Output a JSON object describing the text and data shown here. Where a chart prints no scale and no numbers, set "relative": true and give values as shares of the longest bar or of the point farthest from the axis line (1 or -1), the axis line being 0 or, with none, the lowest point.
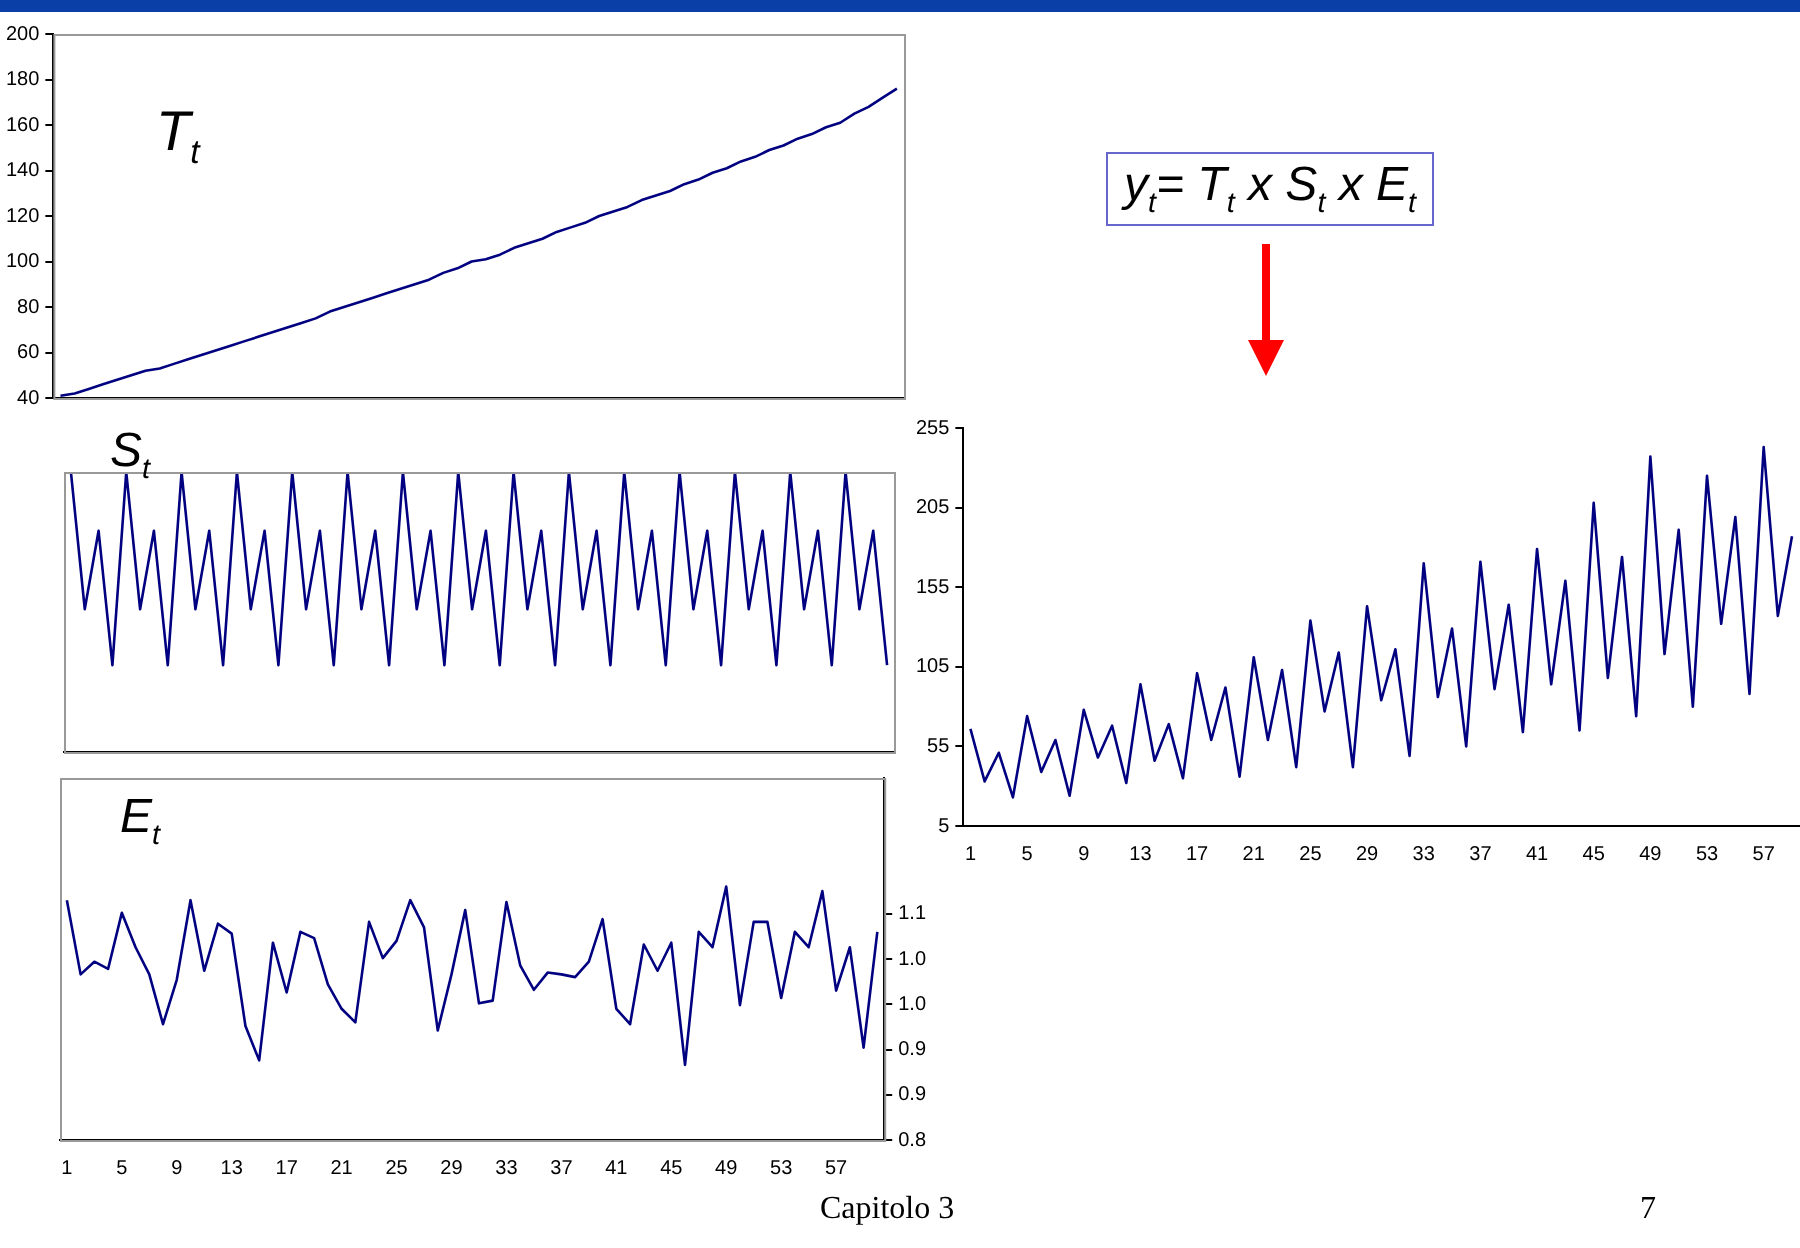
{
  "chart_data": [
    {
      "type": "line",
      "annotations": [
        "T$_{t}$"
      ],
      "tick_labels": "y",
      "grid": false,
      "marker": "none",
      "legend": false,
      "categories": [
        null,
        null,
        null,
        null,
        null,
        null,
        null,
        null,
        null,
        null,
        null,
        null,
        null,
        null,
        null,
        null,
        null,
        null,
        null,
        null,
        null,
        null,
        null,
        null,
        null,
        null,
        null,
        null,
        null,
        null,
        null,
        null,
        null,
        null,
        null,
        null,
        null,
        null,
        null,
        null,
        null,
        null,
        null,
        null,
        null,
        null,
        null,
        null,
        null,
        null,
        null,
        null,
        null,
        null,
        null,
        null,
        null,
        null,
        null,
        null
      ],
      "ylim": [
        40,
        200
      ],
      "yticks": [
        40,
        60,
        80,
        100,
        120,
        140,
        160,
        180,
        200
      ],
      "series": [
        {
          "color": "#000080",
          "values": [
            41,
            42,
            44,
            46,
            48,
            50,
            52,
            53,
            55,
            57,
            59,
            61,
            63,
            65,
            67,
            69,
            71,
            73,
            75,
            78,
            80,
            82,
            84,
            86,
            88,
            90,
            92,
            95,
            97,
            100,
            101,
            103,
            106,
            108,
            110,
            113,
            115,
            117,
            120,
            122,
            124,
            127,
            129,
            131,
            134,
            136,
            139,
            141,
            144,
            146,
            149,
            151,
            154,
            156,
            159,
            161,
            165,
            168,
            172,
            176
          ]
        }
      ]
    },
    {
      "type": "line",
      "annotations": [
        "S$_{t}$"
      ],
      "tick_labels": false,
      "grid": false,
      "marker": "none",
      "legend": false,
      "relative": true,
      "categories": [
        null,
        null,
        null,
        null,
        null,
        null,
        null,
        null,
        null,
        null,
        null,
        null,
        null,
        null,
        null,
        null,
        null,
        null,
        null,
        null,
        null,
        null,
        null,
        null,
        null,
        null,
        null,
        null,
        null,
        null,
        null,
        null,
        null,
        null,
        null,
        null,
        null,
        null,
        null,
        null,
        null,
        null,
        null,
        null,
        null,
        null,
        null,
        null,
        null,
        null,
        null,
        null,
        null,
        null,
        null,
        null,
        null,
        null,
        null,
        null
      ],
      "series": [
        {
          "color": "#000080",
          "values": [
            1,
            0.51,
            0.79,
            0.31,
            1,
            0.51,
            0.79,
            0.31,
            1,
            0.51,
            0.79,
            0.31,
            1,
            0.51,
            0.79,
            0.31,
            1,
            0.51,
            0.79,
            0.31,
            1,
            0.51,
            0.79,
            0.31,
            1,
            0.51,
            0.79,
            0.31,
            1,
            0.51,
            0.79,
            0.31,
            1,
            0.51,
            0.79,
            0.31,
            1,
            0.51,
            0.79,
            0.31,
            1,
            0.51,
            0.79,
            0.31,
            1,
            0.51,
            0.79,
            0.31,
            1,
            0.51,
            0.79,
            0.31,
            1,
            0.51,
            0.79,
            0.31,
            1,
            0.51,
            0.79,
            0.31
          ]
        }
      ]
    },
    {
      "type": "line",
      "annotations": [
        "E$_{t}$"
      ],
      "grid": false,
      "marker": "none",
      "legend": false,
      "categories": [
        "1",
        null,
        null,
        null,
        "5",
        null,
        null,
        null,
        "9",
        null,
        null,
        null,
        "13",
        null,
        null,
        null,
        "17",
        null,
        null,
        null,
        "21",
        null,
        null,
        null,
        "25",
        null,
        null,
        null,
        "29",
        null,
        null,
        null,
        "33",
        null,
        null,
        null,
        "37",
        null,
        null,
        null,
        "41",
        null,
        null,
        null,
        "45",
        null,
        null,
        null,
        "49",
        null,
        null,
        null,
        "53",
        null,
        null,
        null,
        "57",
        null,
        null,
        null
      ],
      "y2lim": [
        0.8,
        1.2
      ],
      "y2ticks": [
        0.8,
        {
          "value": 0.85,
          "label": "0.9"
        },
        0.9,
        {
          "value": 0.95,
          "label": "1.0"
        },
        {
          "value": 1,
          "label": "1.0"
        },
        {
          "value": 1.05,
          "label": "1.1"
        }
      ],
      "series": [
        {
          "color": "#000080",
          "axis": "y2",
          "values": [
            1.065,
            0.983,
            0.997,
            0.989,
            1.051,
            1.013,
            0.983,
            0.928,
            0.977,
            1.065,
            0.987,
            1.039,
            1.028,
            0.926,
            0.888,
            1.018,
            0.963,
            1.03,
            1.023,
            0.972,
            0.945,
            0.93,
            1.041,
            1.001,
            1.02,
            1.065,
            1.035,
            0.921,
            0.983,
            1.054,
            0.951,
            0.954,
            1.063,
            0.993,
            0.966,
            0.985,
            0.983,
            0.98,
            0.997,
            1.044,
            0.945,
            0.928,
            1.016,
            0.987,
            1.018,
            0.883,
            1.03,
            1.013,
            1.08,
            0.949,
            1.041,
            1.041,
            0.957,
            1.03,
            1.013,
            1.075,
            0.965,
            1.013,
            0.902,
            1.03
          ]
        }
      ]
    },
    {
      "type": "line",
      "annotations": [
        "y$_{t}$= T$_{t}$ x S$_{t}$ x E$_{t}$"
      ],
      "grid": false,
      "marker": "none",
      "legend": false,
      "categories": [
        "1",
        null,
        null,
        null,
        "5",
        null,
        null,
        null,
        "9",
        null,
        null,
        null,
        "13",
        null,
        null,
        null,
        "17",
        null,
        null,
        null,
        "21",
        null,
        null,
        null,
        "25",
        null,
        null,
        null,
        "29",
        null,
        null,
        null,
        "33",
        null,
        null,
        null,
        "37",
        null,
        null,
        null,
        "41",
        null,
        null,
        null,
        "45",
        null,
        null,
        null,
        "49",
        null,
        null,
        null,
        "53",
        null,
        null,
        null,
        "57",
        null,
        null
      ],
      "ylim": [
        5,
        255
      ],
      "yticks": [
        5,
        55,
        105,
        155,
        205,
        255
      ],
      "series": [
        {
          "color": "#000080",
          "values": [
            66,
            33,
            51,
            23,
            74,
            39,
            59,
            24,
            78,
            48,
            68,
            32,
            94,
            46,
            69,
            35,
            101,
            59,
            92,
            36,
            111,
            59,
            103,
            42,
            134,
            77,
            114,
            42,
            143,
            84,
            116,
            49,
            170,
            86,
            129,
            55,
            171,
            91,
            144,
            64,
            179,
            94,
            159,
            65,
            208,
            98,
            174,
            74,
            237,
            113,
            191,
            80,
            225,
            132,
            199,
            88,
            243,
            137,
            187
          ]
        }
      ]
    },
    {
      "type": "other",
      "annotations": [
        "Capitolo 3",
        "7"
      ]
    }
  ]
}
